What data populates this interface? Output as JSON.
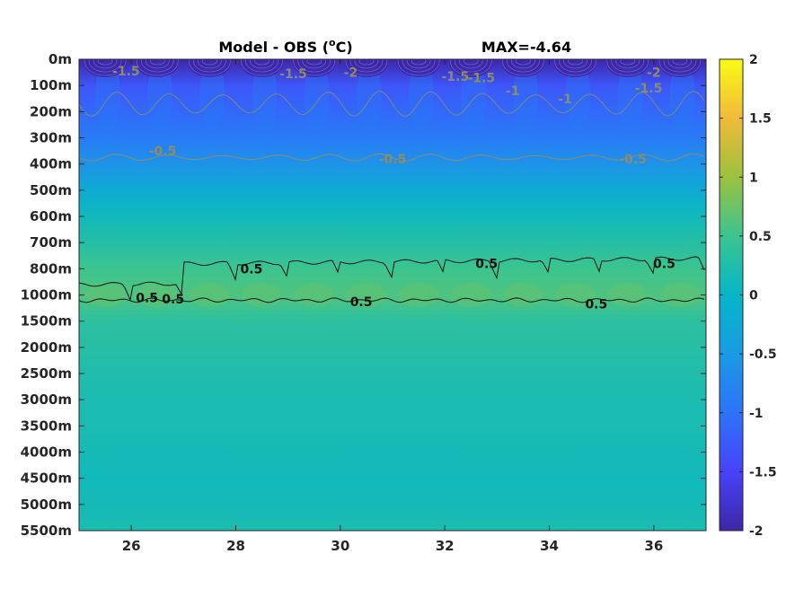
{
  "chart_data": {
    "type": "heatmap",
    "title": "Model - OBS (°C)",
    "title_prefix": "Model - OBS (",
    "title_degree": "o",
    "title_suffix": "C)",
    "max_label": "MAX=-4.64",
    "x_ticks": [
      26,
      28,
      30,
      32,
      34,
      36
    ],
    "x_tick_labels": [
      "26",
      "28",
      "30",
      "32",
      "34",
      "36"
    ],
    "xlim": [
      25,
      37
    ],
    "y_tick_labels": [
      "0m",
      "100m",
      "200m",
      "300m",
      "400m",
      "500m",
      "600m",
      "700m",
      "800m",
      "1000m",
      "1500m",
      "2000m",
      "2500m",
      "3000m",
      "3500m",
      "4000m",
      "4500m",
      "5000m",
      "5500m"
    ],
    "colorbar": {
      "range": [
        -2,
        2
      ],
      "ticks": [
        2,
        1.5,
        1,
        0.5,
        0,
        -0.5,
        -1,
        -1.5,
        -2
      ],
      "tick_labels": [
        "2",
        "1.5",
        "1",
        "0.5",
        "0",
        "-0.5",
        "-1",
        "-1.5",
        "-2"
      ],
      "colormap": "parula"
    },
    "depth_profile": [
      {
        "depth": "0m",
        "value": -2.0
      },
      {
        "depth": "100m",
        "value": -1.3
      },
      {
        "depth": "200m",
        "value": -1.1
      },
      {
        "depth": "300m",
        "value": -0.9
      },
      {
        "depth": "400m",
        "value": -0.6
      },
      {
        "depth": "500m",
        "value": -0.2
      },
      {
        "depth": "600m",
        "value": 0.1
      },
      {
        "depth": "700m",
        "value": 0.3
      },
      {
        "depth": "800m",
        "value": 0.5
      },
      {
        "depth": "1000m",
        "value": 0.6
      },
      {
        "depth": "1500m",
        "value": 0.35
      },
      {
        "depth": "2000m",
        "value": 0.3
      },
      {
        "depth": "2500m",
        "value": 0.25
      },
      {
        "depth": "3000m",
        "value": 0.2
      },
      {
        "depth": "3500m",
        "value": 0.2
      },
      {
        "depth": "4000m",
        "value": 0.15
      },
      {
        "depth": "4500m",
        "value": 0.1
      },
      {
        "depth": "5000m",
        "value": 0.15
      },
      {
        "depth": "5500m",
        "value": 0.2
      }
    ],
    "contour_labels": [
      {
        "text": "-1.5",
        "x": 25.9,
        "depth_index": 0.45,
        "kind": "neg"
      },
      {
        "text": "-1.5",
        "x": 29.1,
        "depth_index": 0.55,
        "kind": "neg"
      },
      {
        "text": "-2",
        "x": 30.2,
        "depth_index": 0.5,
        "kind": "neg"
      },
      {
        "text": "-1.5",
        "x": 32.2,
        "depth_index": 0.65,
        "kind": "neg"
      },
      {
        "text": "-1.5",
        "x": 32.7,
        "depth_index": 0.7,
        "kind": "neg"
      },
      {
        "text": "-1",
        "x": 33.3,
        "depth_index": 1.2,
        "kind": "neg"
      },
      {
        "text": "-1",
        "x": 34.3,
        "depth_index": 1.5,
        "kind": "neg"
      },
      {
        "text": "-2",
        "x": 36.0,
        "depth_index": 0.5,
        "kind": "neg"
      },
      {
        "text": "-1.5",
        "x": 35.9,
        "depth_index": 1.1,
        "kind": "neg"
      },
      {
        "text": "-0.5",
        "x": 26.6,
        "depth_index": 3.5,
        "kind": "neg"
      },
      {
        "text": "-0.5",
        "x": 31.0,
        "depth_index": 3.8,
        "kind": "neg"
      },
      {
        "text": "-0.5",
        "x": 35.6,
        "depth_index": 3.8,
        "kind": "neg"
      },
      {
        "text": "0.5",
        "x": 28.3,
        "depth_index": 8.0,
        "kind": "pos"
      },
      {
        "text": "0.5",
        "x": 32.8,
        "depth_index": 7.8,
        "kind": "pos"
      },
      {
        "text": "0.5",
        "x": 36.2,
        "depth_index": 7.8,
        "kind": "pos"
      },
      {
        "text": "0.5",
        "x": 26.3,
        "depth_index": 9.1,
        "kind": "pos"
      },
      {
        "text": "0.5",
        "x": 26.8,
        "depth_index": 9.15,
        "kind": "pos"
      },
      {
        "text": "0.5",
        "x": 30.4,
        "depth_index": 9.25,
        "kind": "pos"
      },
      {
        "text": "0.5",
        "x": 34.9,
        "depth_index": 9.35,
        "kind": "pos"
      }
    ]
  }
}
